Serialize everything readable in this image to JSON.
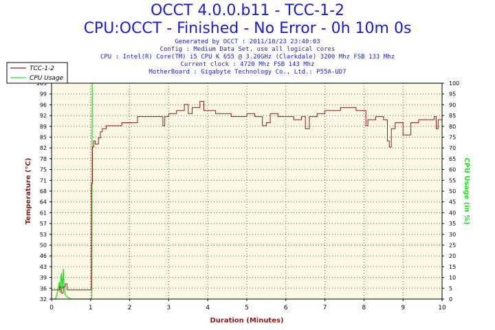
{
  "header": {
    "title": "OCCT 4.0.0.b11 - TCC-1-2",
    "subtitle": "CPU:OCCT - Finished - No Error - 0h 10m 0s",
    "info_lines": [
      "Generated by OCCT : 2011/10/23 23:40:03",
      "Config : Medium Data Set, use all logical cores",
      "CPU : Intel(R) Core(TM) i5 CPU K 655 @ 3.20GHz (Clarkdale) 3200 Mhz FSB 133 Mhz",
      "Current clock : 4720 Mhz FSB 143 Mhz",
      "MotherBoard : Gigabyte Technology Co., Ltd.: P55A-UD7"
    ]
  },
  "colors": {
    "title": "#1a1acc",
    "temp": "#8b1a1a",
    "cpu": "#22dd22",
    "plot_bg": "#fbf8e6",
    "grid": "#555555"
  },
  "chart_data": {
    "type": "line",
    "xlabel": "Duration (Minutes)",
    "ylabel_left": "Temperature (°C)",
    "ylabel_right": "CPU Usage (in %)",
    "xlim": [
      0,
      10
    ],
    "ylim_left": [
      32,
      103
    ],
    "ylim_right": [
      0,
      100
    ],
    "x_ticks": [
      "0",
      "1",
      "2",
      "3",
      "4",
      "5",
      "6",
      "7",
      "8",
      "9",
      "10"
    ],
    "y_ticks_left": [
      "32",
      "36",
      "39",
      "43",
      "46",
      "50",
      "53",
      "57",
      "61",
      "64",
      "68",
      "71",
      "75",
      "78",
      "82",
      "85",
      "89",
      "92",
      "96",
      "99",
      "103"
    ],
    "y_ticks_right": [
      "0",
      "5",
      "10",
      "15",
      "20",
      "25",
      "30",
      "35",
      "40",
      "45",
      "50",
      "55",
      "60",
      "65",
      "70",
      "75",
      "80",
      "85",
      "90",
      "95",
      "100"
    ],
    "grid": true,
    "legend_position": "top-left",
    "series": [
      {
        "name": "TCC-1-2",
        "axis": "left",
        "x": [
          0,
          0.1,
          0.2,
          0.25,
          0.3,
          0.35,
          0.4,
          0.5,
          0.6,
          0.8,
          1.0,
          1.02,
          1.05,
          1.08,
          1.12,
          1.2,
          1.25,
          1.3,
          1.4,
          1.5,
          1.6,
          1.8,
          2.0,
          2.2,
          2.4,
          2.6,
          2.8,
          2.85,
          2.9,
          3.0,
          3.2,
          3.4,
          3.5,
          3.6,
          3.8,
          3.9,
          4.0,
          4.2,
          4.4,
          4.6,
          4.8,
          5.0,
          5.2,
          5.4,
          5.5,
          5.6,
          5.8,
          6.0,
          6.2,
          6.4,
          6.5,
          6.6,
          6.8,
          7.0,
          7.2,
          7.4,
          7.6,
          7.8,
          8.0,
          8.05,
          8.1,
          8.3,
          8.5,
          8.6,
          8.65,
          8.7,
          8.8,
          9.0,
          9.1,
          9.2,
          9.4,
          9.6,
          9.8,
          9.85,
          9.9,
          10.0
        ],
        "y": [
          35,
          35,
          36,
          34,
          36,
          37,
          35,
          35,
          35,
          35,
          35,
          70,
          82,
          84,
          83,
          85,
          87,
          88,
          89,
          89,
          89,
          90,
          90,
          92,
          92,
          92,
          92,
          89,
          92,
          93,
          94,
          96,
          93,
          95,
          97,
          94,
          94,
          93,
          93,
          92,
          92,
          93,
          92,
          89,
          90,
          93,
          92,
          92,
          91,
          92,
          88,
          92,
          93,
          94,
          94,
          95,
          95,
          94,
          94,
          89,
          91,
          92,
          91,
          84,
          82,
          88,
          90,
          86,
          86,
          90,
          91,
          91,
          92,
          88,
          91,
          91
        ]
      },
      {
        "name": "CPU Usage",
        "axis": "right",
        "x": [
          0,
          0.1,
          0.15,
          0.2,
          0.22,
          0.25,
          0.28,
          0.3,
          0.32,
          0.35,
          0.4,
          0.5,
          0.7,
          1.0,
          1.03,
          1.04,
          1.06,
          1.08,
          1.2,
          2.0,
          4.0,
          6.0,
          8.0,
          10.0
        ],
        "y": [
          0,
          0,
          3,
          8,
          3,
          12,
          5,
          14,
          6,
          2,
          1,
          0,
          0,
          0,
          0,
          100,
          100,
          100,
          100,
          100,
          100,
          100,
          100,
          100
        ]
      }
    ]
  }
}
